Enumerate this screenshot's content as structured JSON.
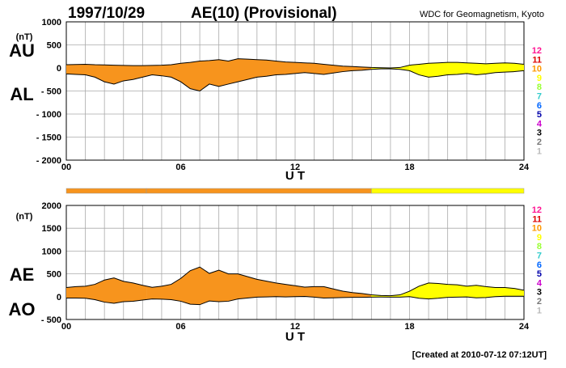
{
  "header": {
    "date": "1997/10/29",
    "title": "AE(10) (Provisional)",
    "source": "WDC for Geomagnetism, Kyoto"
  },
  "footer": {
    "created": "[Created at 2010-07-12 07:12UT]"
  },
  "legend": {
    "levels": [
      "12",
      "11",
      "10",
      "9",
      "8",
      "7",
      "6",
      "5",
      "4",
      "3",
      "2",
      "1"
    ],
    "colors": [
      "#ff1493",
      "#dd0000",
      "#ff9900",
      "#ffff00",
      "#99ff33",
      "#33cccc",
      "#0066ff",
      "#0000aa",
      "#cc00cc",
      "#000000",
      "#777777",
      "#bbbbbb"
    ]
  },
  "colors": {
    "orange": "#f7941d",
    "yellow": "#ffff00"
  },
  "chart_data": [
    {
      "type": "area",
      "series_labels": [
        "AU",
        "AL"
      ],
      "unit_label": "(nT)",
      "xlabel": "U T",
      "xlim": [
        0,
        24
      ],
      "ylim": [
        -2000,
        1000
      ],
      "xticks": [
        "00",
        "06",
        "12",
        "18",
        "24"
      ],
      "yticks": [
        "1000",
        "500",
        "0",
        "- 500",
        "- 1000",
        "- 1500",
        "- 2000"
      ],
      "ytick_values": [
        1000,
        500,
        0,
        -500,
        -1000,
        -1500,
        -2000
      ],
      "grid": true,
      "time_h": [
        0,
        0.5,
        1,
        1.5,
        2,
        2.5,
        3,
        3.5,
        4,
        4.5,
        5,
        5.5,
        6,
        6.5,
        7,
        7.5,
        8,
        8.5,
        9,
        9.5,
        10,
        10.5,
        11,
        11.5,
        12,
        12.5,
        13,
        13.5,
        14,
        14.5,
        15,
        15.5,
        16,
        16.5,
        17,
        17.5,
        18,
        18.5,
        19,
        19.5,
        20,
        20.5,
        21,
        21.5,
        22,
        22.5,
        23,
        23.5,
        24
      ],
      "series": [
        {
          "values": [
            70,
            75,
            80,
            70,
            65,
            60,
            55,
            50,
            50,
            55,
            60,
            70,
            100,
            120,
            150,
            160,
            180,
            150,
            200,
            190,
            180,
            170,
            150,
            130,
            120,
            110,
            100,
            80,
            60,
            40,
            30,
            20,
            10,
            5,
            0,
            10,
            60,
            80,
            100,
            110,
            120,
            120,
            110,
            100,
            90,
            100,
            110,
            100,
            80
          ]
        },
        {
          "values": [
            -130,
            -140,
            -150,
            -200,
            -300,
            -350,
            -280,
            -250,
            -200,
            -150,
            -170,
            -200,
            -300,
            -450,
            -500,
            -350,
            -400,
            -350,
            -300,
            -250,
            -200,
            -180,
            -150,
            -140,
            -120,
            -100,
            -120,
            -140,
            -110,
            -80,
            -60,
            -50,
            -30,
            -20,
            -20,
            -30,
            -60,
            -150,
            -200,
            -180,
            -150,
            -140,
            -120,
            -150,
            -130,
            -100,
            -90,
            -80,
            -60
          ]
        }
      ]
    },
    {
      "type": "area",
      "series_labels": [
        "AE",
        "AO"
      ],
      "unit_label": "(nT)",
      "xlabel": "U T",
      "xlim": [
        0,
        24
      ],
      "ylim": [
        -500,
        2000
      ],
      "xticks": [
        "00",
        "06",
        "12",
        "18",
        "24"
      ],
      "yticks": [
        "2000",
        "1500",
        "1000",
        "500",
        "0",
        "- 500"
      ],
      "ytick_values": [
        2000,
        1500,
        1000,
        500,
        0,
        -500
      ],
      "grid": true,
      "time_h": [
        0,
        0.5,
        1,
        1.5,
        2,
        2.5,
        3,
        3.5,
        4,
        4.5,
        5,
        5.5,
        6,
        6.5,
        7,
        7.5,
        8,
        8.5,
        9,
        9.5,
        10,
        10.5,
        11,
        11.5,
        12,
        12.5,
        13,
        13.5,
        14,
        14.5,
        15,
        15.5,
        16,
        16.5,
        17,
        17.5,
        18,
        18.5,
        19,
        19.5,
        20,
        20.5,
        21,
        21.5,
        22,
        22.5,
        23,
        23.5,
        24
      ],
      "series": [
        {
          "values": [
            200,
            220,
            230,
            270,
            365,
            410,
            335,
            300,
            250,
            205,
            230,
            270,
            400,
            570,
            650,
            510,
            580,
            500,
            500,
            440,
            380,
            340,
            300,
            270,
            240,
            210,
            220,
            220,
            170,
            120,
            90,
            70,
            40,
            25,
            20,
            40,
            120,
            230,
            300,
            290,
            270,
            260,
            230,
            250,
            220,
            200,
            200,
            180,
            140
          ]
        },
        {
          "values": [
            -30,
            -30,
            -35,
            -65,
            -120,
            -145,
            -110,
            -100,
            -75,
            -50,
            -55,
            -65,
            -100,
            -165,
            -175,
            -95,
            -110,
            -100,
            -50,
            -30,
            -10,
            -5,
            0,
            -5,
            0,
            5,
            -10,
            -30,
            -25,
            -20,
            -15,
            -15,
            -10,
            -8,
            -10,
            -10,
            0,
            -35,
            -50,
            -35,
            -15,
            -10,
            -5,
            -25,
            -20,
            0,
            10,
            10,
            10
          ]
        }
      ]
    }
  ],
  "activity_bar": {
    "segments": [
      {
        "start": 0,
        "end": 4.2,
        "level": "10",
        "color": "#f7941d"
      },
      {
        "start": 4.2,
        "end": 16,
        "level": "10",
        "color": "#f7941d"
      },
      {
        "start": 16,
        "end": 24,
        "level": "9",
        "color": "#ffff00"
      }
    ]
  }
}
